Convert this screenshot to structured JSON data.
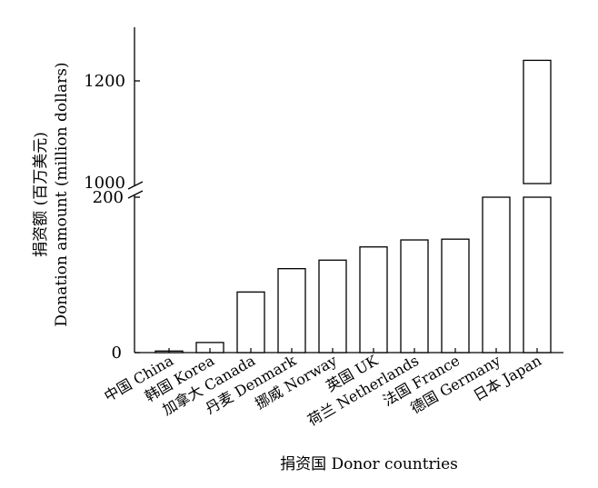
{
  "chart_data": {
    "type": "bar",
    "broken_y_axis": true,
    "categories": [
      "中国 China",
      "韩国 Korea",
      "加拿大 Canada",
      "丹麦 Denmark",
      "挪威 Norway",
      "英国 UK",
      "荷兰 Netherlands",
      "法国 France",
      "德国 Germany",
      "日本 Japan"
    ],
    "values": [
      2,
      13,
      78,
      108,
      119,
      136,
      145,
      146,
      200,
      1240
    ],
    "ylabel_line1": "捐资额 (百万美元)",
    "ylabel_line2": "Donation amount (million dollars)",
    "xlabel": "捐资国 Donor countries",
    "lower_ylim": [
      0,
      200
    ],
    "upper_ylim": [
      1000,
      1300
    ],
    "lower_ticks": [
      0,
      200
    ],
    "upper_ticks": [
      1000,
      1200
    ],
    "tick_labels": [
      "0",
      "200",
      "1000",
      "1200"
    ],
    "grid": false,
    "bar_fill": "#ffffff",
    "bar_stroke": "#000000"
  }
}
